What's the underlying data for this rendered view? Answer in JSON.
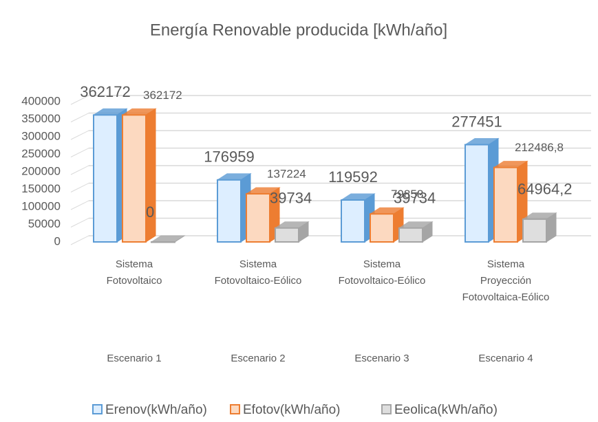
{
  "chart_data": {
    "type": "bar3d",
    "title": "Energía Renovable producida [kWh/año]",
    "categories": [
      "Sistema Fotovoltaico",
      "Sistema Fotovoltaico-Eólico",
      "Sistema Fotovoltaico-Eólico",
      "Sistema Proyección Fotovoltaica-Eólico"
    ],
    "groups": [
      "Escenario 1",
      "Escenario 2",
      "Escenario 3",
      "Escenario 4"
    ],
    "series": [
      {
        "name": "Erenov(kWh/año)",
        "color": "#5b9bd5",
        "fill": "#ddeeff",
        "values": [
          362172,
          176959,
          119592,
          277451
        ]
      },
      {
        "name": "Efotov(kWh/año)",
        "color": "#ed7d31",
        "fill": "#fcd9c0",
        "values": [
          362172,
          137224,
          79858,
          212486.8
        ],
        "value_labels": [
          "362172",
          "137224",
          "79858",
          "212486,8"
        ]
      },
      {
        "name": "Eeolica(kWh/año)",
        "color": "#a5a5a5",
        "fill": "#dedede",
        "values": [
          0,
          39734,
          39734,
          64964.2
        ],
        "value_labels": [
          "0",
          "39734",
          "39734",
          "64964,2"
        ]
      }
    ],
    "ylim": [
      0,
      450000
    ],
    "yticks": [
      0,
      50000,
      100000,
      150000,
      200000,
      250000,
      300000,
      350000,
      400000
    ],
    "grid": true,
    "legend": "bottom"
  }
}
